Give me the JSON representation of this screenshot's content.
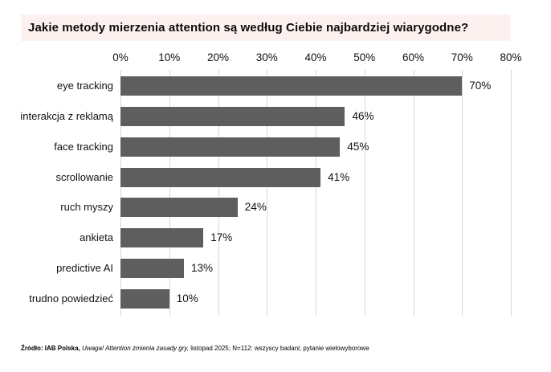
{
  "title": "Jakie metody mierzenia attention są według Ciebie najbardziej wiarygodne?",
  "chart_data": {
    "type": "bar",
    "orientation": "horizontal",
    "title": "Jakie metody mierzenia attention są według Ciebie najbardziej wiarygodne?",
    "categories": [
      "eye tracking",
      "interakcja z reklamą",
      "face tracking",
      "scrollowanie",
      "ruch myszy",
      "ankieta",
      "predictive AI",
      "trudno powiedzieć"
    ],
    "values": [
      70,
      46,
      45,
      41,
      24,
      17,
      13,
      10
    ],
    "value_labels": [
      "70%",
      "46%",
      "45%",
      "41%",
      "24%",
      "17%",
      "13%",
      "10%"
    ],
    "x_axis": {
      "tick_labels": [
        "0%",
        "10%",
        "20%",
        "30%",
        "40%",
        "50%",
        "60%",
        "70%",
        "80%"
      ],
      "min": 0,
      "max": 80,
      "step": 10,
      "position": "top"
    },
    "grid": true,
    "legend": false,
    "bar_color": "#5e5e5e",
    "gridline_color": "#d6d6d6",
    "title_background_color": "#fcf1ee"
  },
  "footer": {
    "source_bold": "Źródło: IAB Polska,",
    "source_italic": "Uwaga! Attention zmienia zasady gry,",
    "source_rest": "listopad 2025; N=112: wszyscy badani; pytanie wielowyborowe"
  }
}
